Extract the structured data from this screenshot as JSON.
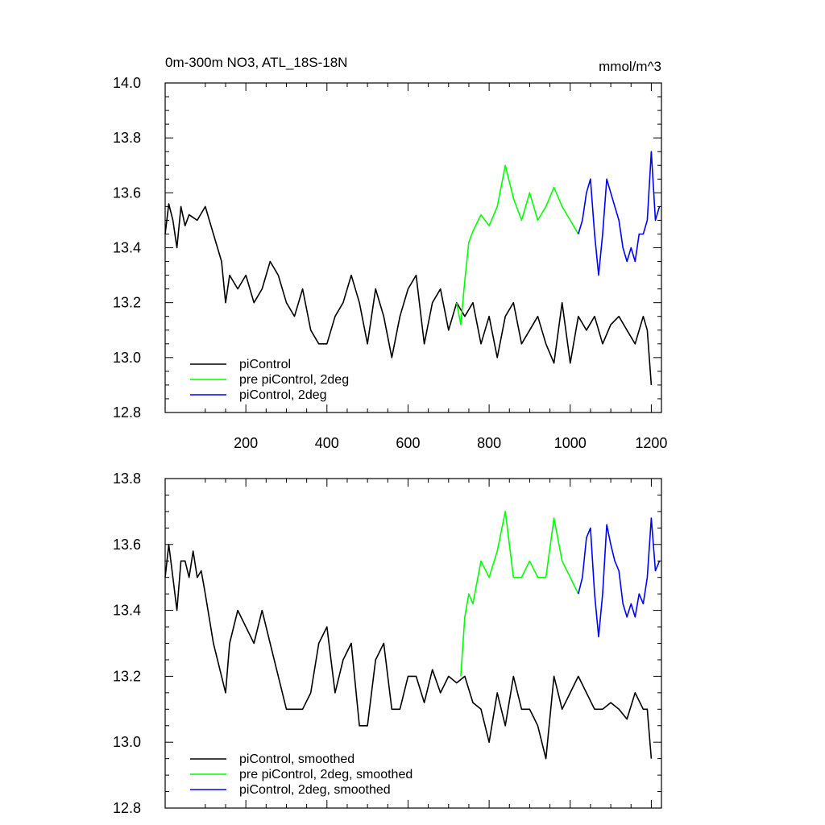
{
  "chart_data": [
    {
      "type": "line",
      "title_left": "0m-300m NO3, ATL_18S-18N",
      "title_right": "mmol/m^3",
      "xlabel": "",
      "ylabel": "",
      "xlim": [
        1,
        1225
      ],
      "ylim": [
        12.8,
        14.0
      ],
      "xticks": [
        200,
        400,
        600,
        800,
        1000,
        1200
      ],
      "xtick_labels": [
        "200",
        "400",
        "600",
        "800",
        "1000",
        "1200"
      ],
      "yticks": [
        12.8,
        13.0,
        13.2,
        13.4,
        13.6,
        13.8,
        14.0
      ],
      "ytick_labels": [
        "12.8",
        "13.0",
        "13.2",
        "13.4",
        "13.6",
        "13.8",
        "14.0"
      ],
      "grid": false,
      "legend_position": "bottom-left",
      "series": [
        {
          "name": "piControl",
          "color": "#000000",
          "x": [
            1,
            10,
            20,
            30,
            40,
            50,
            60,
            80,
            100,
            120,
            140,
            150,
            160,
            180,
            200,
            220,
            240,
            260,
            280,
            300,
            320,
            340,
            360,
            380,
            400,
            420,
            440,
            460,
            480,
            500,
            520,
            540,
            560,
            580,
            600,
            620,
            640,
            660,
            680,
            700,
            720,
            740,
            760,
            780,
            800,
            820,
            840,
            860,
            880,
            900,
            920,
            940,
            960,
            980,
            1000,
            1020,
            1040,
            1060,
            1080,
            1100,
            1120,
            1140,
            1160,
            1180,
            1190,
            1200
          ],
          "y": [
            13.45,
            13.56,
            13.5,
            13.4,
            13.55,
            13.48,
            13.52,
            13.5,
            13.55,
            13.45,
            13.35,
            13.2,
            13.3,
            13.25,
            13.3,
            13.2,
            13.25,
            13.35,
            13.3,
            13.2,
            13.15,
            13.25,
            13.1,
            13.05,
            13.05,
            13.15,
            13.2,
            13.3,
            13.2,
            13.05,
            13.25,
            13.15,
            13.0,
            13.15,
            13.25,
            13.3,
            13.05,
            13.2,
            13.25,
            13.1,
            13.2,
            13.15,
            13.2,
            13.05,
            13.15,
            13.0,
            13.15,
            13.2,
            13.05,
            13.1,
            13.15,
            13.05,
            12.98,
            13.2,
            12.98,
            13.15,
            13.1,
            13.15,
            13.05,
            13.12,
            13.15,
            13.1,
            13.05,
            13.15,
            13.1,
            12.9
          ]
        },
        {
          "name": "pre piControl, 2deg",
          "color": "#00ff00",
          "x": [
            720,
            730,
            740,
            750,
            760,
            780,
            800,
            820,
            840,
            860,
            880,
            900,
            920,
            940,
            960,
            980,
            1000,
            1020
          ],
          "y": [
            13.2,
            13.12,
            13.28,
            13.42,
            13.46,
            13.52,
            13.48,
            13.55,
            13.7,
            13.58,
            13.5,
            13.6,
            13.5,
            13.55,
            13.62,
            13.55,
            13.5,
            13.45
          ]
        },
        {
          "name": "piControl, 2deg",
          "color": "#0000ff",
          "x": [
            1020,
            1030,
            1040,
            1050,
            1060,
            1070,
            1080,
            1090,
            1100,
            1110,
            1120,
            1130,
            1140,
            1150,
            1160,
            1170,
            1180,
            1190,
            1200,
            1210,
            1220
          ],
          "y": [
            13.45,
            13.5,
            13.6,
            13.65,
            13.45,
            13.3,
            13.45,
            13.65,
            13.6,
            13.55,
            13.5,
            13.4,
            13.35,
            13.4,
            13.35,
            13.45,
            13.45,
            13.5,
            13.75,
            13.5,
            13.55
          ]
        }
      ]
    },
    {
      "type": "line",
      "xlabel": "",
      "ylabel": "",
      "xlim": [
        1,
        1225
      ],
      "ylim": [
        12.8,
        13.8
      ],
      "xticks": [
        200,
        400,
        600,
        800,
        1000,
        1200
      ],
      "yticks": [
        12.8,
        13.0,
        13.2,
        13.4,
        13.6,
        13.8
      ],
      "ytick_labels": [
        "12.8",
        "13.0",
        "13.2",
        "13.4",
        "13.6",
        "13.8"
      ],
      "grid": false,
      "legend_position": "bottom-left",
      "series": [
        {
          "name": "piControl, smoothed",
          "color": "#000000",
          "x": [
            1,
            10,
            20,
            30,
            40,
            50,
            60,
            70,
            80,
            90,
            100,
            120,
            140,
            150,
            160,
            180,
            200,
            220,
            240,
            260,
            280,
            300,
            320,
            340,
            360,
            380,
            400,
            420,
            440,
            460,
            480,
            500,
            520,
            540,
            560,
            580,
            600,
            620,
            640,
            660,
            680,
            700,
            720,
            740,
            760,
            780,
            800,
            820,
            840,
            860,
            880,
            900,
            920,
            940,
            960,
            980,
            1000,
            1020,
            1040,
            1060,
            1080,
            1100,
            1120,
            1140,
            1160,
            1180,
            1190,
            1200
          ],
          "y": [
            13.5,
            13.6,
            13.5,
            13.4,
            13.55,
            13.55,
            13.5,
            13.58,
            13.5,
            13.52,
            13.45,
            13.3,
            13.2,
            13.15,
            13.3,
            13.4,
            13.35,
            13.3,
            13.4,
            13.3,
            13.2,
            13.1,
            13.1,
            13.1,
            13.15,
            13.3,
            13.35,
            13.15,
            13.25,
            13.3,
            13.05,
            13.05,
            13.25,
            13.3,
            13.1,
            13.1,
            13.2,
            13.2,
            13.12,
            13.22,
            13.15,
            13.2,
            13.18,
            13.2,
            13.12,
            13.1,
            13.0,
            13.15,
            13.05,
            13.2,
            13.1,
            13.1,
            13.05,
            12.95,
            13.2,
            13.1,
            13.15,
            13.2,
            13.15,
            13.1,
            13.1,
            13.12,
            13.1,
            13.07,
            13.15,
            13.1,
            13.1,
            12.95
          ]
        },
        {
          "name": "pre piControl, 2deg, smoothed",
          "color": "#00ff00",
          "x": [
            730,
            740,
            750,
            760,
            780,
            800,
            820,
            840,
            860,
            880,
            900,
            920,
            940,
            960,
            980,
            1000,
            1020
          ],
          "y": [
            13.2,
            13.38,
            13.45,
            13.42,
            13.55,
            13.5,
            13.58,
            13.7,
            13.5,
            13.5,
            13.55,
            13.5,
            13.5,
            13.68,
            13.55,
            13.5,
            13.45
          ]
        },
        {
          "name": "piControl, 2deg, smoothed",
          "color": "#0000ff",
          "x": [
            1020,
            1030,
            1040,
            1050,
            1060,
            1070,
            1080,
            1090,
            1100,
            1110,
            1120,
            1130,
            1140,
            1150,
            1160,
            1170,
            1180,
            1190,
            1200,
            1210,
            1220
          ],
          "y": [
            13.45,
            13.5,
            13.62,
            13.65,
            13.45,
            13.32,
            13.45,
            13.66,
            13.6,
            13.55,
            13.52,
            13.42,
            13.38,
            13.42,
            13.38,
            13.45,
            13.42,
            13.5,
            13.68,
            13.52,
            13.55
          ]
        }
      ]
    }
  ]
}
